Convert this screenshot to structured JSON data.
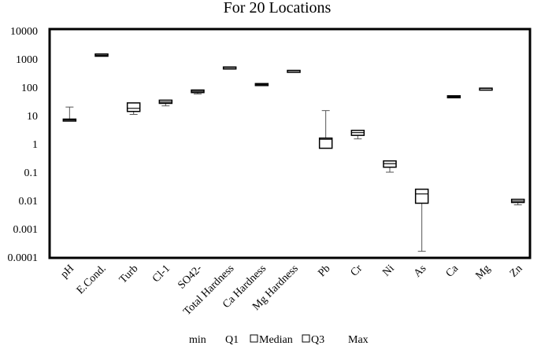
{
  "chart_data": {
    "type": "box",
    "title": "For 20 Locations",
    "yscale": "log",
    "ylim": [
      0.0001,
      10000
    ],
    "yticks": [
      "0.0001",
      "0.001",
      "0.01",
      "0.1",
      "1",
      "10",
      "100",
      "1000",
      "10000"
    ],
    "categories": [
      "pH",
      "E.Cond.",
      "Turb",
      "Cl-1",
      "SO42-",
      "Total Hardness",
      "Ca Hardness",
      "Mg Hardness",
      "Pb",
      "Cr",
      "Ni",
      "As",
      "Ca",
      "Mg",
      "Zn"
    ],
    "series": [
      {
        "name": "min",
        "values": [
          6.5,
          1200,
          11,
          22,
          58,
          470,
          112,
          370,
          0.7,
          1.5,
          0.1,
          0.00016,
          42,
          88,
          0.007
        ]
      },
      {
        "name": "Q1",
        "values": [
          6.5,
          1250,
          14,
          27,
          65,
          480,
          115,
          375,
          0.7,
          2.0,
          0.15,
          0.008,
          43,
          89,
          0.0085
        ]
      },
      {
        "name": "Median",
        "values": [
          7,
          1350,
          18,
          30,
          72,
          500,
          125,
          385,
          1.45,
          2.5,
          0.2,
          0.017,
          46,
          91,
          0.0095
        ]
      },
      {
        "name": "Q3",
        "values": [
          7.5,
          1500,
          28,
          35,
          80,
          520,
          135,
          395,
          1.6,
          3.0,
          0.25,
          0.025,
          50,
          93,
          0.011
        ]
      },
      {
        "name": "Max",
        "values": [
          20,
          1500,
          28,
          35,
          80,
          520,
          135,
          395,
          15,
          3.0,
          0.25,
          0.025,
          50,
          93,
          0.011
        ]
      }
    ],
    "legend": [
      "min",
      "Q1",
      "Median",
      "Q3",
      "Max"
    ],
    "legend_position": "bottom"
  }
}
